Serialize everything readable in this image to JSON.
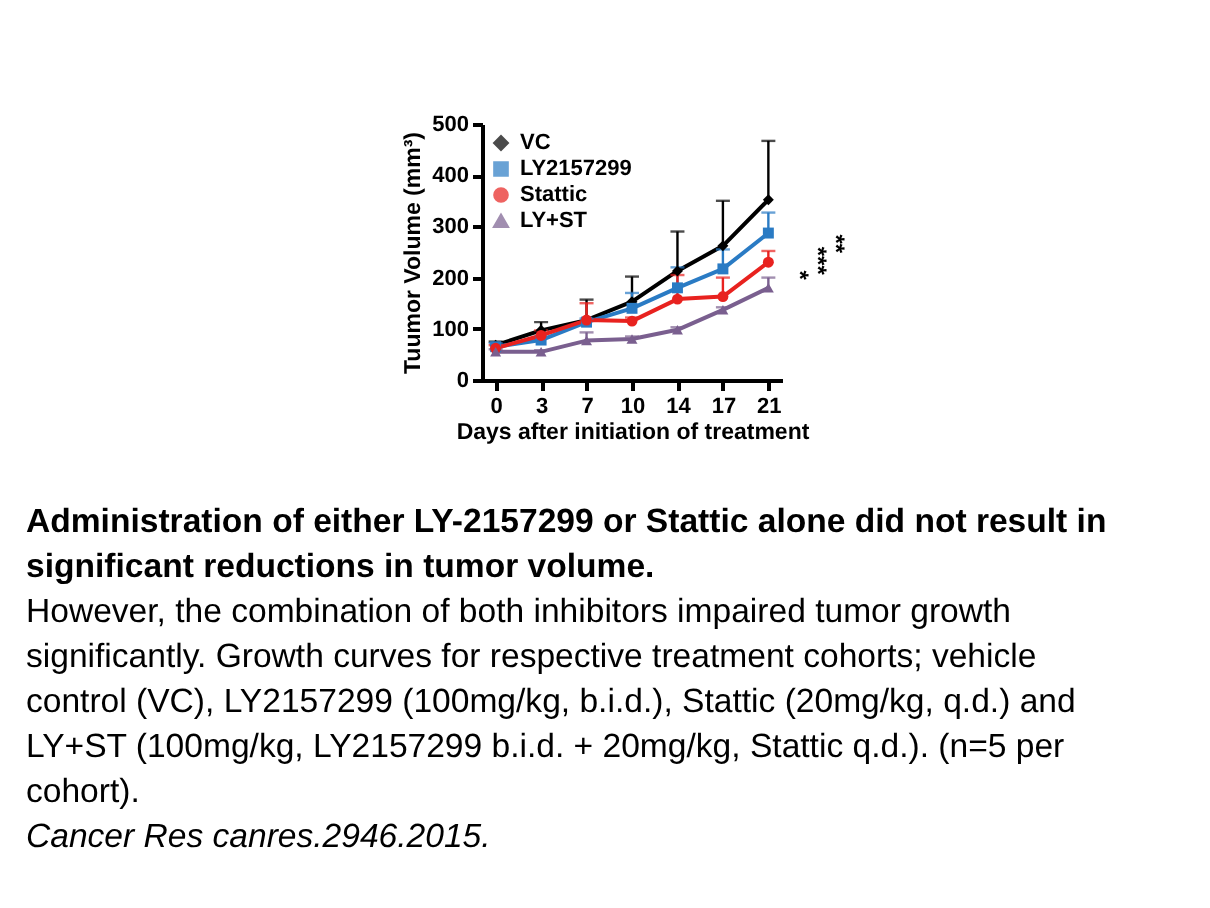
{
  "chart_data": {
    "type": "line",
    "categories": [
      "0",
      "3",
      "7",
      "10",
      "14",
      "17",
      "21"
    ],
    "xlabel": "Days after initiation of treatment",
    "ylabel": "Tuumor Volume (mm³)",
    "ylim": [
      0,
      500
    ],
    "yticks": [
      0,
      100,
      200,
      300,
      400,
      500
    ],
    "grid": false,
    "legend": "top left",
    "series": [
      {
        "name": "VC",
        "color": "#000000",
        "marker": "diamond",
        "values": [
          68,
          97,
          117,
          153,
          213,
          262,
          352
        ],
        "errors": [
          [
            68,
            75
          ],
          [
            97,
            113
          ],
          [
            117,
            157
          ],
          [
            153,
            202
          ],
          [
            213,
            290
          ],
          [
            262,
            350
          ],
          [
            352,
            467
          ]
        ]
      },
      {
        "name": "LY2157299",
        "color": "#2a7bc4",
        "marker": "square",
        "values": [
          65,
          78,
          113,
          140,
          180,
          217,
          287
        ],
        "errors": [
          [
            65,
            72
          ],
          null,
          [
            113,
            120
          ],
          [
            140,
            170
          ],
          [
            180,
            220
          ],
          [
            217,
            255
          ],
          [
            287,
            327
          ]
        ]
      },
      {
        "name": "Stattic",
        "color": "#e8221f",
        "marker": "circle",
        "values": [
          62,
          87,
          117,
          115,
          158,
          163,
          230
        ],
        "errors": [
          [
            62,
            68
          ],
          [
            87,
            97
          ],
          [
            117,
            150
          ],
          [
            115,
            122
          ],
          [
            158,
            205
          ],
          [
            163,
            200
          ],
          [
            230,
            252
          ]
        ]
      },
      {
        "name": "LY+ST",
        "color": "#7a5f8f",
        "marker": "triangle",
        "values": [
          55,
          55,
          77,
          80,
          98,
          137,
          180
        ],
        "errors": [
          [
            55,
            60
          ],
          [
            55,
            58
          ],
          [
            77,
            93
          ],
          [
            80,
            85
          ],
          [
            98,
            103
          ],
          [
            137,
            142
          ],
          [
            180,
            200
          ]
        ]
      }
    ],
    "annotations": [
      {
        "text": "*",
        "x": "21",
        "y": 205
      },
      {
        "text": "***",
        "x": "21",
        "y": 233
      },
      {
        "text": "**",
        "x": "21",
        "y": 266
      },
      "Administration of either LY-2157299 or Stattic alone did not result in significant reductions in tumor volume.",
      "However, the combination of both inhibitors impaired tumor growth significantly. Growth curves for respective treatment cohorts; vehicle control (VC), LY2157299 (100mg/kg, b.i.d.), Stattic (20mg/kg, q.d.) and LY+ST (100mg/kg, LY2157299 b.i.d. + 20mg/kg, Stattic q.d.). (n=5 per cohort).",
      "Cancer Res canres.2946.2015."
    ]
  }
}
